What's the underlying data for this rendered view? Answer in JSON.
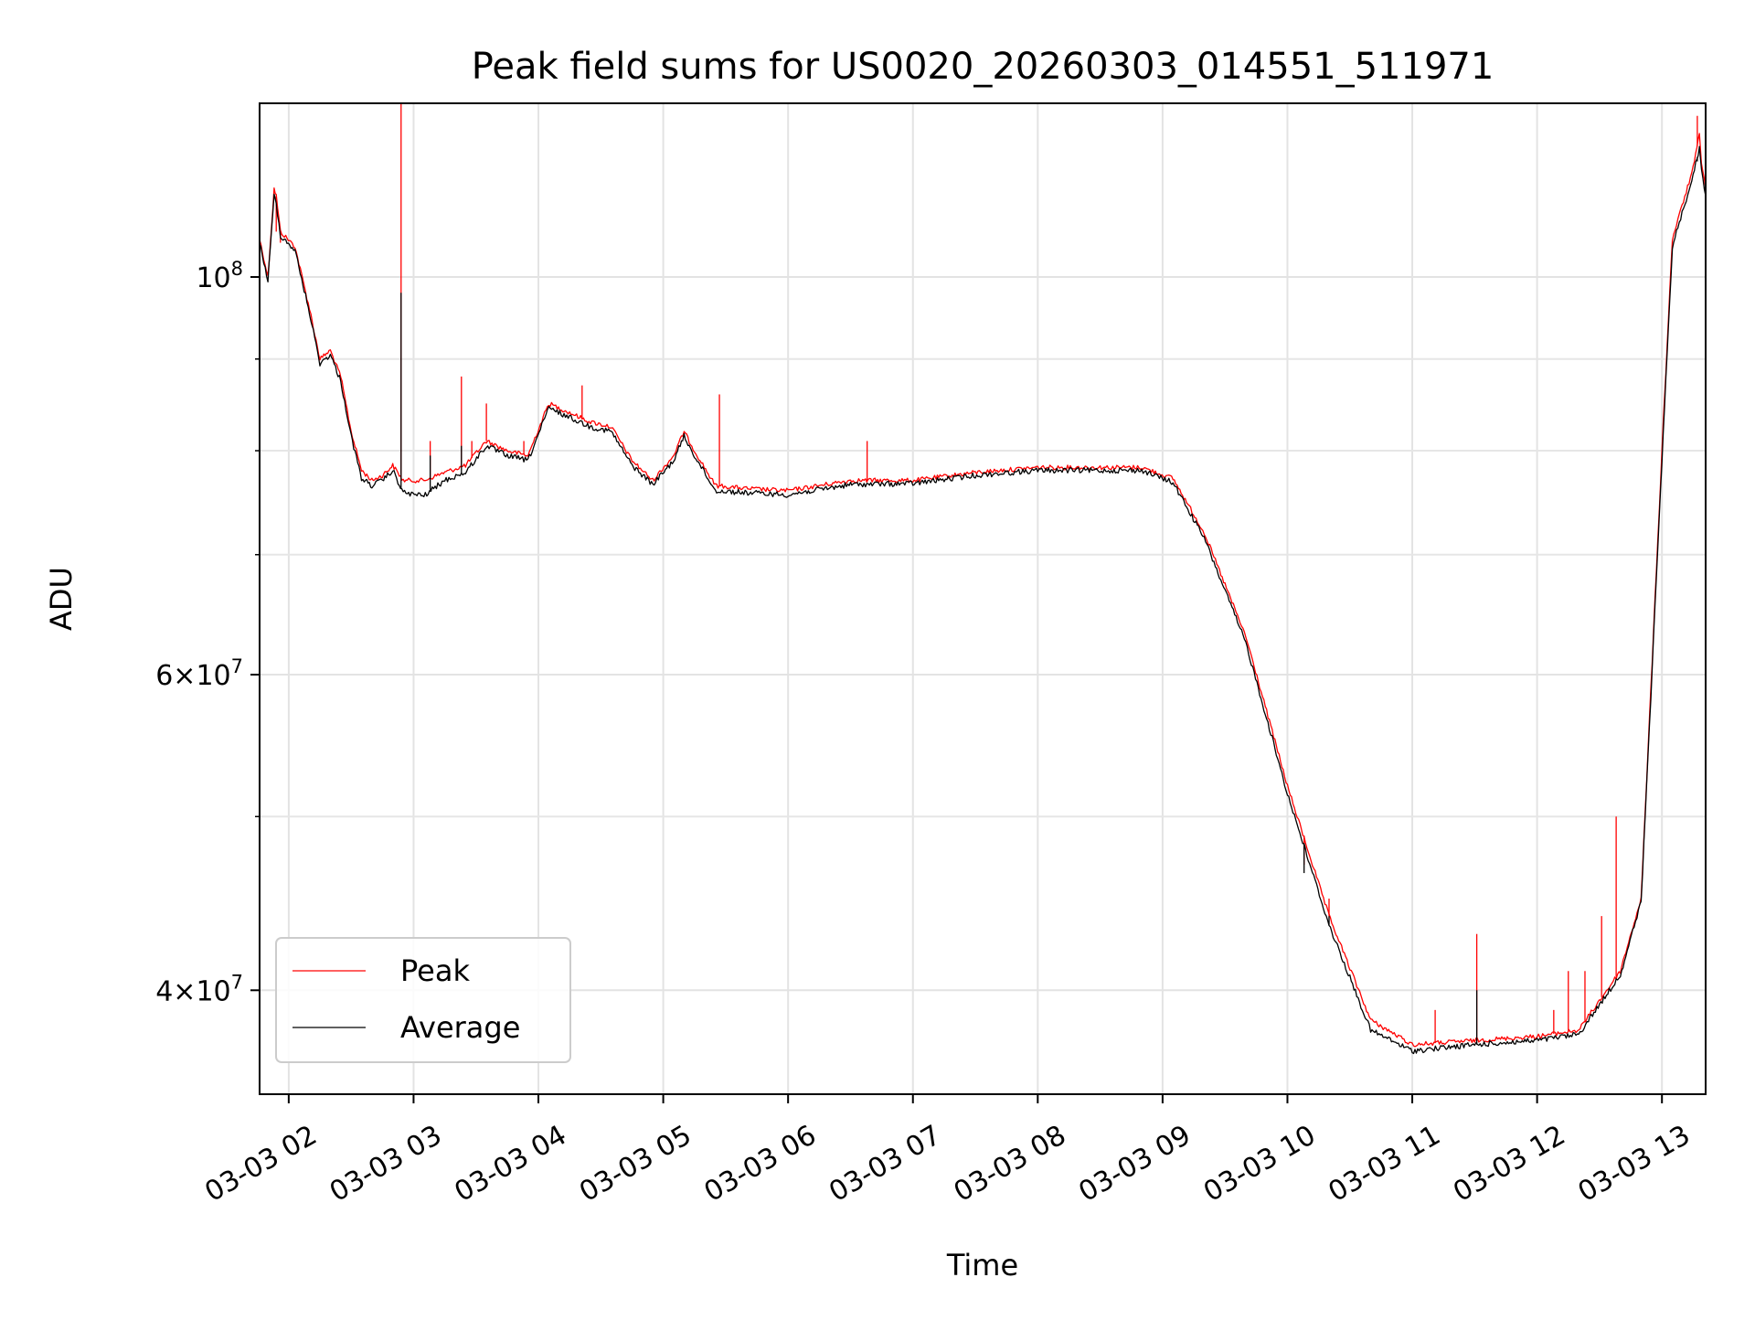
{
  "chart_data": {
    "type": "line",
    "title": "Peak field sums for US0020_20260303_014551_511971",
    "xlabel": "Time",
    "ylabel": "ADU",
    "yscale": "log",
    "ylim": [
      35000000,
      125000000
    ],
    "xlim": [
      "2026-03-03 01:46",
      "2026-03-03 13:21"
    ],
    "grid": true,
    "legend_position": "lower-left",
    "x_ticks": [
      {
        "t": "2026-03-03 02:00",
        "label": "03-03 02"
      },
      {
        "t": "2026-03-03 03:00",
        "label": "03-03 03"
      },
      {
        "t": "2026-03-03 04:00",
        "label": "03-03 04"
      },
      {
        "t": "2026-03-03 05:00",
        "label": "03-03 05"
      },
      {
        "t": "2026-03-03 06:00",
        "label": "03-03 06"
      },
      {
        "t": "2026-03-03 07:00",
        "label": "03-03 07"
      },
      {
        "t": "2026-03-03 08:00",
        "label": "03-03 08"
      },
      {
        "t": "2026-03-03 09:00",
        "label": "03-03 09"
      },
      {
        "t": "2026-03-03 10:00",
        "label": "03-03 10"
      },
      {
        "t": "2026-03-03 11:00",
        "label": "03-03 11"
      },
      {
        "t": "2026-03-03 12:00",
        "label": "03-03 12"
      },
      {
        "t": "2026-03-03 13:00",
        "label": "03-03 13"
      }
    ],
    "y_ticks_major": [
      {
        "v": 100000000,
        "base": "10",
        "exp": "8"
      },
      {
        "v": 60000000,
        "mant": "6",
        "base": "10",
        "exp": "7"
      },
      {
        "v": 40000000,
        "mant": "4",
        "base": "10",
        "exp": "7"
      }
    ],
    "y_ticks_minor": [
      50000000,
      70000000,
      80000000,
      90000000
    ],
    "series": [
      {
        "name": "Peak",
        "color": "#ff0000",
        "points": [
          [
            "2026-03-03 01:46",
            105000000
          ],
          [
            "2026-03-03 01:50",
            100000000
          ],
          [
            "2026-03-03 01:53",
            112000000
          ],
          [
            "2026-03-03 01:54",
            111000000
          ],
          [
            "2026-03-03 01:56",
            106000000
          ],
          [
            "2026-03-03 02:03",
            104000000
          ],
          [
            "2026-03-03 02:10",
            96000000
          ],
          [
            "2026-03-03 02:15",
            90000000
          ],
          [
            "2026-03-03 02:20",
            91000000
          ],
          [
            "2026-03-03 02:25",
            88000000
          ],
          [
            "2026-03-03 02:30",
            82000000
          ],
          [
            "2026-03-03 02:35",
            78000000
          ],
          [
            "2026-03-03 02:40",
            77000000
          ],
          [
            "2026-03-03 02:45",
            77500000
          ],
          [
            "2026-03-03 02:50",
            78500000
          ],
          [
            "2026-03-03 02:55",
            77000000
          ],
          [
            "2026-03-03 03:05",
            77000000
          ],
          [
            "2026-03-03 03:15",
            77800000
          ],
          [
            "2026-03-03 03:25",
            78500000
          ],
          [
            "2026-03-03 03:35",
            81000000
          ],
          [
            "2026-03-03 03:45",
            80000000
          ],
          [
            "2026-03-03 03:55",
            79500000
          ],
          [
            "2026-03-03 04:05",
            85000000
          ],
          [
            "2026-03-03 04:15",
            84000000
          ],
          [
            "2026-03-03 04:25",
            83000000
          ],
          [
            "2026-03-03 04:35",
            82500000
          ],
          [
            "2026-03-03 04:45",
            79000000
          ],
          [
            "2026-03-03 04:55",
            77000000
          ],
          [
            "2026-03-03 05:05",
            79500000
          ],
          [
            "2026-03-03 05:10",
            82000000
          ],
          [
            "2026-03-03 05:15",
            80000000
          ],
          [
            "2026-03-03 05:25",
            76500000
          ],
          [
            "2026-03-03 05:40",
            76200000
          ],
          [
            "2026-03-03 06:00",
            76000000
          ],
          [
            "2026-03-03 06:30",
            77000000
          ],
          [
            "2026-03-03 07:00",
            77000000
          ],
          [
            "2026-03-03 07:30",
            77800000
          ],
          [
            "2026-03-03 08:00",
            78300000
          ],
          [
            "2026-03-03 08:30",
            78300000
          ],
          [
            "2026-03-03 08:50",
            78300000
          ],
          [
            "2026-03-03 09:05",
            77200000
          ],
          [
            "2026-03-03 09:20",
            72000000
          ],
          [
            "2026-03-03 09:40",
            63000000
          ],
          [
            "2026-03-03 10:00",
            52000000
          ],
          [
            "2026-03-03 10:20",
            44000000
          ],
          [
            "2026-03-03 10:40",
            38500000
          ],
          [
            "2026-03-03 11:00",
            37300000
          ],
          [
            "2026-03-03 11:30",
            37500000
          ],
          [
            "2026-03-03 12:00",
            37700000
          ],
          [
            "2026-03-03 12:20",
            38000000
          ],
          [
            "2026-03-03 12:40",
            41000000
          ],
          [
            "2026-03-03 12:50",
            45000000
          ],
          [
            "2026-03-03 13:00",
            80000000
          ],
          [
            "2026-03-03 13:05",
            105000000
          ],
          [
            "2026-03-03 13:15",
            115000000
          ],
          [
            "2026-03-03 13:18",
            120000000
          ],
          [
            "2026-03-03 13:19",
            116000000
          ],
          [
            "2026-03-03 13:21",
            112000000
          ]
        ],
        "spikes": [
          [
            "2026-03-03 01:54",
            106000000
          ],
          [
            "2026-03-03 01:56",
            104500000
          ],
          [
            "2026-03-03 02:54",
            125000000
          ],
          [
            "2026-03-03 03:08",
            81000000
          ],
          [
            "2026-03-03 03:23",
            88000000
          ],
          [
            "2026-03-03 03:28",
            81000000
          ],
          [
            "2026-03-03 03:35",
            85000000
          ],
          [
            "2026-03-03 03:53",
            81000000
          ],
          [
            "2026-03-03 04:21",
            87000000
          ],
          [
            "2026-03-03 05:27",
            86000000
          ],
          [
            "2026-03-03 06:38",
            81000000
          ],
          [
            "2026-03-03 10:08",
            47000000
          ],
          [
            "2026-03-03 10:20",
            45000000
          ],
          [
            "2026-03-03 11:11",
            39000000
          ],
          [
            "2026-03-03 11:31",
            43000000
          ],
          [
            "2026-03-03 12:08",
            39000000
          ],
          [
            "2026-03-03 12:15",
            41000000
          ],
          [
            "2026-03-03 12:23",
            41000000
          ],
          [
            "2026-03-03 12:31",
            44000000
          ],
          [
            "2026-03-03 12:38",
            50000000
          ],
          [
            "2026-03-03 13:17",
            123000000
          ]
        ]
      },
      {
        "name": "Average",
        "color": "#000000",
        "points": [
          [
            "2026-03-03 01:46",
            104500000
          ],
          [
            "2026-03-03 01:50",
            99500000
          ],
          [
            "2026-03-03 01:53",
            111000000
          ],
          [
            "2026-03-03 01:54",
            110000000
          ],
          [
            "2026-03-03 01:56",
            105500000
          ],
          [
            "2026-03-03 02:03",
            103500000
          ],
          [
            "2026-03-03 02:10",
            95500000
          ],
          [
            "2026-03-03 02:15",
            89500000
          ],
          [
            "2026-03-03 02:20",
            90500000
          ],
          [
            "2026-03-03 02:25",
            87500000
          ],
          [
            "2026-03-03 02:30",
            81500000
          ],
          [
            "2026-03-03 02:35",
            77200000
          ],
          [
            "2026-03-03 02:40",
            76500000
          ],
          [
            "2026-03-03 02:45",
            77000000
          ],
          [
            "2026-03-03 02:50",
            78000000
          ],
          [
            "2026-03-03 02:55",
            75800000
          ],
          [
            "2026-03-03 03:05",
            75500000
          ],
          [
            "2026-03-03 03:15",
            77000000
          ],
          [
            "2026-03-03 03:25",
            77800000
          ],
          [
            "2026-03-03 03:35",
            80500000
          ],
          [
            "2026-03-03 03:45",
            79500000
          ],
          [
            "2026-03-03 03:55",
            79000000
          ],
          [
            "2026-03-03 04:05",
            84500000
          ],
          [
            "2026-03-03 04:15",
            83500000
          ],
          [
            "2026-03-03 04:25",
            82500000
          ],
          [
            "2026-03-03 04:35",
            82000000
          ],
          [
            "2026-03-03 04:45",
            78500000
          ],
          [
            "2026-03-03 04:55",
            76600000
          ],
          [
            "2026-03-03 05:05",
            79000000
          ],
          [
            "2026-03-03 05:10",
            81500000
          ],
          [
            "2026-03-03 05:15",
            79500000
          ],
          [
            "2026-03-03 05:25",
            76000000
          ],
          [
            "2026-03-03 05:40",
            75800000
          ],
          [
            "2026-03-03 06:00",
            75600000
          ],
          [
            "2026-03-03 06:30",
            76600000
          ],
          [
            "2026-03-03 07:00",
            76700000
          ],
          [
            "2026-03-03 07:30",
            77500000
          ],
          [
            "2026-03-03 08:00",
            78000000
          ],
          [
            "2026-03-03 08:30",
            78000000
          ],
          [
            "2026-03-03 08:50",
            78000000
          ],
          [
            "2026-03-03 09:05",
            76800000
          ],
          [
            "2026-03-03 09:20",
            71500000
          ],
          [
            "2026-03-03 09:40",
            62500000
          ],
          [
            "2026-03-03 10:00",
            51500000
          ],
          [
            "2026-03-03 10:20",
            43500000
          ],
          [
            "2026-03-03 10:40",
            38000000
          ],
          [
            "2026-03-03 11:00",
            37000000
          ],
          [
            "2026-03-03 11:30",
            37300000
          ],
          [
            "2026-03-03 12:00",
            37500000
          ],
          [
            "2026-03-03 12:20",
            37800000
          ],
          [
            "2026-03-03 12:40",
            40800000
          ],
          [
            "2026-03-03 12:50",
            44800000
          ],
          [
            "2026-03-03 13:00",
            79000000
          ],
          [
            "2026-03-03 13:05",
            104000000
          ],
          [
            "2026-03-03 13:15",
            114000000
          ],
          [
            "2026-03-03 13:18",
            118000000
          ],
          [
            "2026-03-03 13:19",
            115000000
          ],
          [
            "2026-03-03 13:21",
            111000000
          ]
        ],
        "spikes": [
          [
            "2026-03-03 02:54",
            98000000
          ],
          [
            "2026-03-03 03:08",
            79500000
          ],
          [
            "2026-03-03 03:23",
            80500000
          ],
          [
            "2026-03-03 10:08",
            46500000
          ],
          [
            "2026-03-03 10:20",
            44000000
          ],
          [
            "2026-03-03 11:31",
            40000000
          ],
          [
            "2026-03-03 13:17",
            116000000
          ]
        ]
      }
    ]
  }
}
